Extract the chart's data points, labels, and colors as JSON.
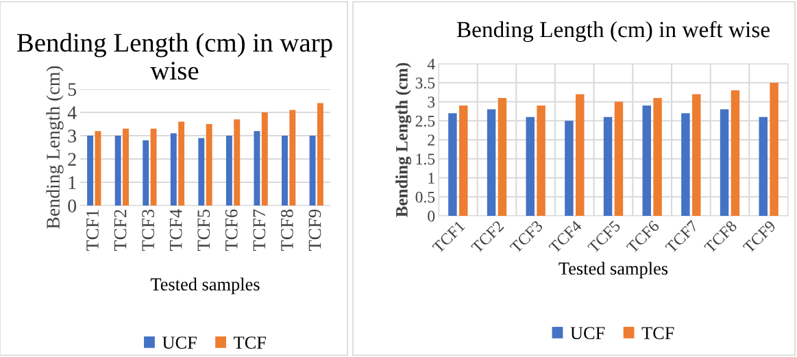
{
  "chart_data": [
    {
      "type": "bar",
      "title": "Bending Length (cm) in warp wise",
      "xlabel": "Tested samples",
      "ylabel": "Bending Length (cm)",
      "categories": [
        "TCF1",
        "TCF2",
        "TCF3",
        "TCF4",
        "TCF5",
        "TCF6",
        "TCF7",
        "TCF8",
        "TCF9"
      ],
      "series": [
        {
          "name": "UCF",
          "color": "#4472c4",
          "values": [
            3.0,
            3.0,
            2.8,
            3.1,
            2.9,
            3.0,
            3.2,
            3.0,
            3.0
          ]
        },
        {
          "name": "TCF",
          "color": "#ed7d31",
          "values": [
            3.2,
            3.3,
            3.3,
            3.6,
            3.5,
            3.7,
            4.0,
            4.1,
            4.4
          ]
        }
      ],
      "ylim": [
        0,
        5
      ],
      "yticks": [
        0,
        1,
        2,
        3,
        4,
        5
      ],
      "grid": "y",
      "legend": "bottom"
    },
    {
      "type": "bar",
      "title": "Bending Length (cm) in weft wise",
      "xlabel": "Tested samples",
      "ylabel": "Bending Length (cm)",
      "categories": [
        "TCF1",
        "TCF2",
        "TCF3",
        "TCF4",
        "TCF5",
        "TCF6",
        "TCF7",
        "TCF8",
        "TCF9"
      ],
      "series": [
        {
          "name": "UCF",
          "color": "#4472c4",
          "values": [
            2.7,
            2.8,
            2.6,
            2.5,
            2.6,
            2.9,
            2.7,
            2.8,
            2.6
          ]
        },
        {
          "name": "TCF",
          "color": "#ed7d31",
          "values": [
            2.9,
            3.1,
            2.9,
            3.2,
            3.0,
            3.1,
            3.2,
            3.3,
            3.5
          ]
        }
      ],
      "ylim": [
        0,
        4
      ],
      "yticks": [
        0,
        0.5,
        1,
        1.5,
        2,
        2.5,
        3,
        3.5,
        4
      ],
      "grid": true,
      "legend": "bottom"
    }
  ]
}
